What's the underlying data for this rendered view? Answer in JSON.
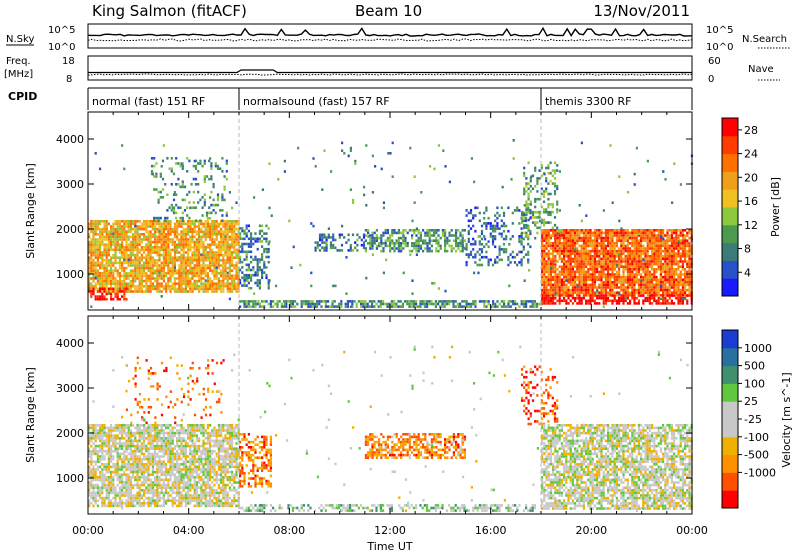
{
  "header": {
    "station": "King Salmon (fitACF)",
    "beam": "Beam 10",
    "date": "13/Nov/2011"
  },
  "summary": {
    "nsky_label": "N.Sky",
    "nsky_ticks": [
      "10^5",
      "10^0"
    ],
    "nsearch_label": "N.Search",
    "freq_label": "Freq.",
    "freq_unit": "[MHz]",
    "freq_ticks": [
      "18",
      "8"
    ],
    "nave_label": "Nave",
    "nave_ticks": [
      "60",
      "0"
    ],
    "cpid_label": "CPID"
  },
  "modes": [
    {
      "label": "normal (fast) 151 RF",
      "start_hour": 0
    },
    {
      "label": "normalsound (fast) 157 RF",
      "start_hour": 6
    },
    {
      "label": "themis 3300 RF",
      "start_hour": 18
    }
  ],
  "axes": {
    "xlabel": "Time UT",
    "ylabel": "Slant Range [km]",
    "x_ticks": [
      "00:00",
      "04:00",
      "08:00",
      "12:00",
      "16:00",
      "20:00",
      "00:00"
    ],
    "x_tick_hours": [
      0,
      4,
      8,
      12,
      16,
      20,
      24
    ],
    "y_ticks": [
      1000,
      2000,
      3000,
      4000
    ],
    "ylim": [
      200,
      4600
    ],
    "xlim_hours": [
      0,
      24
    ]
  },
  "chart_data": [
    {
      "type": "heatmap",
      "quantity": "Power",
      "colorbar_label": "Power [dB]",
      "colorbar_ticks": [
        4,
        8,
        12,
        16,
        20,
        24,
        28
      ],
      "colorbar_range": [
        0,
        30
      ],
      "colors": [
        "#1a1aff",
        "#2850c8",
        "#3c7c78",
        "#4a9a50",
        "#8cc83c",
        "#f0c020",
        "#f0a018",
        "#ff7000",
        "#ff3c00",
        "#ff0000"
      ],
      "regions": [
        {
          "t0": 0.0,
          "t1": 6.0,
          "r0": 600,
          "r1": 2200,
          "level": 0.62,
          "dens": 0.85
        },
        {
          "t0": 0.0,
          "t1": 1.5,
          "r0": 450,
          "r1": 700,
          "level": 0.95,
          "dens": 0.6
        },
        {
          "t0": 2.5,
          "t1": 5.5,
          "r0": 2200,
          "r1": 3600,
          "level": 0.3,
          "dens": 0.18
        },
        {
          "t0": 6.0,
          "t1": 7.2,
          "r0": 700,
          "r1": 2100,
          "level": 0.25,
          "dens": 0.45
        },
        {
          "t0": 11.0,
          "t1": 15.0,
          "r0": 1500,
          "r1": 2000,
          "level": 0.32,
          "dens": 0.6
        },
        {
          "t0": 9.0,
          "t1": 11.0,
          "r0": 1500,
          "r1": 1900,
          "level": 0.25,
          "dens": 0.35
        },
        {
          "t0": 15.0,
          "t1": 17.6,
          "r0": 1200,
          "r1": 2500,
          "level": 0.22,
          "dens": 0.3
        },
        {
          "t0": 6.0,
          "t1": 18.0,
          "r0": 250,
          "r1": 420,
          "level": 0.3,
          "dens": 0.7
        },
        {
          "t0": 17.2,
          "t1": 18.6,
          "r0": 1800,
          "r1": 3500,
          "level": 0.35,
          "dens": 0.3
        },
        {
          "t0": 18.0,
          "t1": 24.0,
          "r0": 500,
          "r1": 2000,
          "level": 0.78,
          "dens": 0.9
        },
        {
          "t0": 18.0,
          "t1": 24.0,
          "r0": 350,
          "r1": 550,
          "level": 0.98,
          "dens": 0.7
        },
        {
          "t0": 0.0,
          "t1": 24.0,
          "r0": 300,
          "r1": 4000,
          "level": 0.3,
          "dens": 0.012
        }
      ]
    },
    {
      "type": "heatmap",
      "quantity": "Velocity",
      "colorbar_label": "Velocity [m s^-1]",
      "colorbar_tick_labels": [
        "1000",
        "500",
        "100",
        "25",
        "-25",
        "-100",
        "-500",
        "-1000"
      ],
      "colors": [
        "#ff0000",
        "#ff5000",
        "#ff9000",
        "#f0b000",
        "#c8c8c8",
        "#c8c8c8",
        "#60c840",
        "#409070",
        "#2870a0",
        "#1a3cd0"
      ],
      "regions": [
        {
          "t0": 0.0,
          "t1": 6.0,
          "r0": 400,
          "r1": 2200,
          "level": 0.48,
          "dens": 0.8
        },
        {
          "t0": 1.5,
          "t1": 5.5,
          "r0": 2200,
          "r1": 3700,
          "level": 0.2,
          "dens": 0.1
        },
        {
          "t0": 6.0,
          "t1": 7.3,
          "r0": 800,
          "r1": 2000,
          "level": 0.22,
          "dens": 0.45
        },
        {
          "t0": 11.0,
          "t1": 15.0,
          "r0": 1450,
          "r1": 2000,
          "level": 0.25,
          "dens": 0.6
        },
        {
          "t0": 6.0,
          "t1": 18.0,
          "r0": 250,
          "r1": 420,
          "level": 0.6,
          "dens": 0.45
        },
        {
          "t0": 17.2,
          "t1": 18.6,
          "r0": 2200,
          "r1": 3500,
          "level": 0.15,
          "dens": 0.25
        },
        {
          "t0": 18.0,
          "t1": 24.0,
          "r0": 300,
          "r1": 2200,
          "level": 0.5,
          "dens": 0.75
        },
        {
          "t0": 0.0,
          "t1": 24.0,
          "r0": 300,
          "r1": 4000,
          "level": 0.5,
          "dens": 0.01
        }
      ]
    }
  ]
}
